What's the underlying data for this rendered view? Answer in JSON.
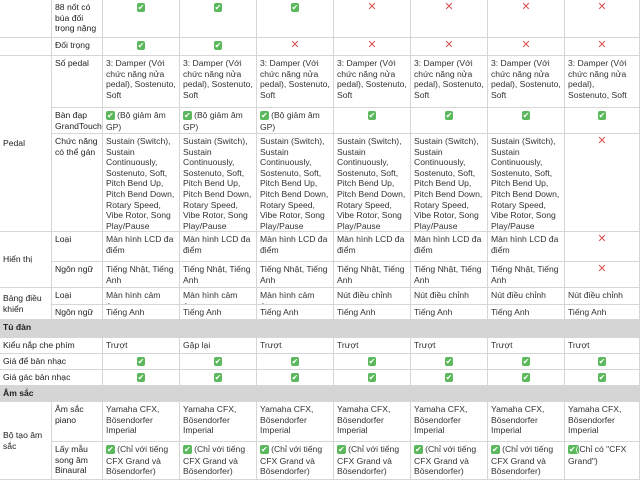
{
  "table": {
    "rows": [
      {
        "sub": "88 nốt có búa đối trọng nặng",
        "cells": [
          "✔",
          "✔",
          "✔",
          "✕",
          "✕",
          "✕",
          "✕"
        ]
      },
      {
        "sub": "Đối trọng",
        "cells": [
          "✔",
          "✔",
          "✕",
          "✕",
          "✕",
          "✕",
          "✕"
        ]
      },
      {
        "group": "Pedal",
        "rows": [
          {
            "sub": "Số pedal",
            "cells": [
              "3: Damper (Với chức năng nửa pedal), Sostenuto, Soft",
              "3: Damper (Với chức năng nửa pedal), Sostenuto, Soft",
              "3: Damper (Với chức năng nửa pedal), Sostenuto, Soft",
              "3: Damper (Với chức năng nửa pedal), Sostenuto, Soft",
              "3: Damper (Với chức năng nửa pedal), Sostenuto, Soft",
              "3: Damper (Với chức năng nửa pedal), Sostenuto, Soft",
              "3: Damper (Với chức năng nửa pedal), Sostenuto, Soft"
            ]
          },
          {
            "sub": "Bàn đạp GrandTouch",
            "cells": [
              "✔ (Bộ giảm âm GP)",
              "✔ (Bộ giảm âm GP)",
              "✔ (Bộ giảm âm GP)",
              "✔",
              "✔",
              "✔",
              "✔"
            ]
          },
          {
            "sub": "Chức năng có thể gán",
            "cells": [
              "Sustain (Switch), Sustain Continuously, Sostenuto, Soft, Pitch Bend Up, Pitch Bend Down, Rotary Speed, Vibe Rotor, Song Play/Pause",
              "Sustain (Switch), Sustain Continuously, Sostenuto, Soft, Pitch Bend Up, Pitch Bend Down, Rotary Speed, Vibe Rotor, Song Play/Pause",
              "Sustain (Switch), Sustain Continuously, Sostenuto, Soft, Pitch Bend Up, Pitch Bend Down, Rotary Speed, Vibe Rotor, Song Play/Pause",
              "Sustain (Switch), Sustain Continuously, Sostenuto, Soft, Pitch Bend Up, Pitch Bend Down, Rotary Speed, Vibe Rotor, Song Play/Pause",
              "Sustain (Switch), Sustain Continuously, Sostenuto, Soft, Pitch Bend Up, Pitch Bend Down, Rotary Speed, Vibe Rotor, Song Play/Pause",
              "Sustain (Switch), Sustain Continuously, Sostenuto, Soft, Pitch Bend Up, Pitch Bend Down, Rotary Speed, Vibe Rotor, Song Play/Pause",
              "✕"
            ]
          }
        ]
      },
      {
        "group": "Hiển thị",
        "rows": [
          {
            "sub": "Loại",
            "cells": [
              "Màn hình LCD đa điểm",
              "Màn hình LCD đa điểm",
              "Màn hình LCD đa điểm",
              "Màn hình LCD đa điểm",
              "Màn hình LCD đa điểm",
              "Màn hình LCD đa điểm",
              "✕"
            ]
          },
          {
            "sub": "Ngôn ngữ",
            "cells": [
              "Tiếng Nhật, Tiếng Anh",
              "Tiếng Nhật, Tiếng Anh",
              "Tiếng Nhật, Tiếng Anh",
              "Tiếng Nhật, Tiếng Anh",
              "Tiếng Nhật, Tiếng Anh",
              "Tiếng Nhật, Tiếng Anh",
              "✕"
            ]
          }
        ]
      },
      {
        "group": "Bảng điều khiển",
        "rows": [
          {
            "sub": "Loại",
            "cells": [
              "Màn hình cảm ứng",
              "Màn hình cảm ứng",
              "Màn hình cảm ứng",
              "Nút điều chỉnh",
              "Nút điều chỉnh",
              "Nút điều chỉnh",
              "Nút điều chỉnh"
            ]
          },
          {
            "sub": "Ngôn ngữ",
            "cells": [
              "Tiếng Anh",
              "Tiếng Anh",
              "Tiếng Anh",
              "Tiếng Anh",
              "Tiếng Anh",
              "Tiếng Anh",
              "Tiếng Anh"
            ]
          }
        ]
      },
      {
        "section": "Tủ đàn"
      },
      {
        "label": "Kiểu nắp che phím",
        "cells": [
          "Trượt",
          "Gập lại",
          "Trượt",
          "Trượt",
          "Trượt",
          "Trượt",
          "Trượt"
        ]
      },
      {
        "label": "Giá để bản nhạc",
        "cells": [
          "✔",
          "✔",
          "✔",
          "✔",
          "✔",
          "✔",
          "✔"
        ]
      },
      {
        "label": "Giá gác bản nhạc",
        "cells": [
          "✔",
          "✔",
          "✔",
          "✔",
          "✔",
          "✔",
          "✔"
        ]
      },
      {
        "section": "Âm sắc"
      },
      {
        "group": "Bộ tạo âm sắc",
        "rows": [
          {
            "sub": "Âm sắc piano",
            "cells": [
              "Yamaha CFX, Bösendorfer Imperial",
              "Yamaha CFX, Bösendorfer Imperial",
              "Yamaha CFX, Bösendorfer Imperial",
              "Yamaha CFX, Bösendorfer Imperial",
              "Yamaha CFX, Bösendorfer Imperial",
              "Yamaha CFX, Bösendorfer Imperial",
              "Yamaha CFX, Bösendorfer Imperial"
            ]
          },
          {
            "sub": "Lấy mẫu song âm Binaural",
            "cells": [
              "✔ (Chỉ với tiếng CFX Grand và Bösendorfer)",
              "✔ (Chỉ với tiếng CFX Grand và Bösendorfer)",
              "✔ (Chỉ với tiếng CFX Grand và Bösendorfer)",
              "✔ (Chỉ với tiếng CFX Grand và Bösendorfer)",
              "✔ (Chỉ với tiếng CFX Grand và Bösendorfer)",
              "✔ (Chỉ với tiếng CFX Grand và Bösendorfer)",
              "✔(Chỉ có \"CFX Grand\")"
            ]
          }
        ]
      }
    ]
  }
}
